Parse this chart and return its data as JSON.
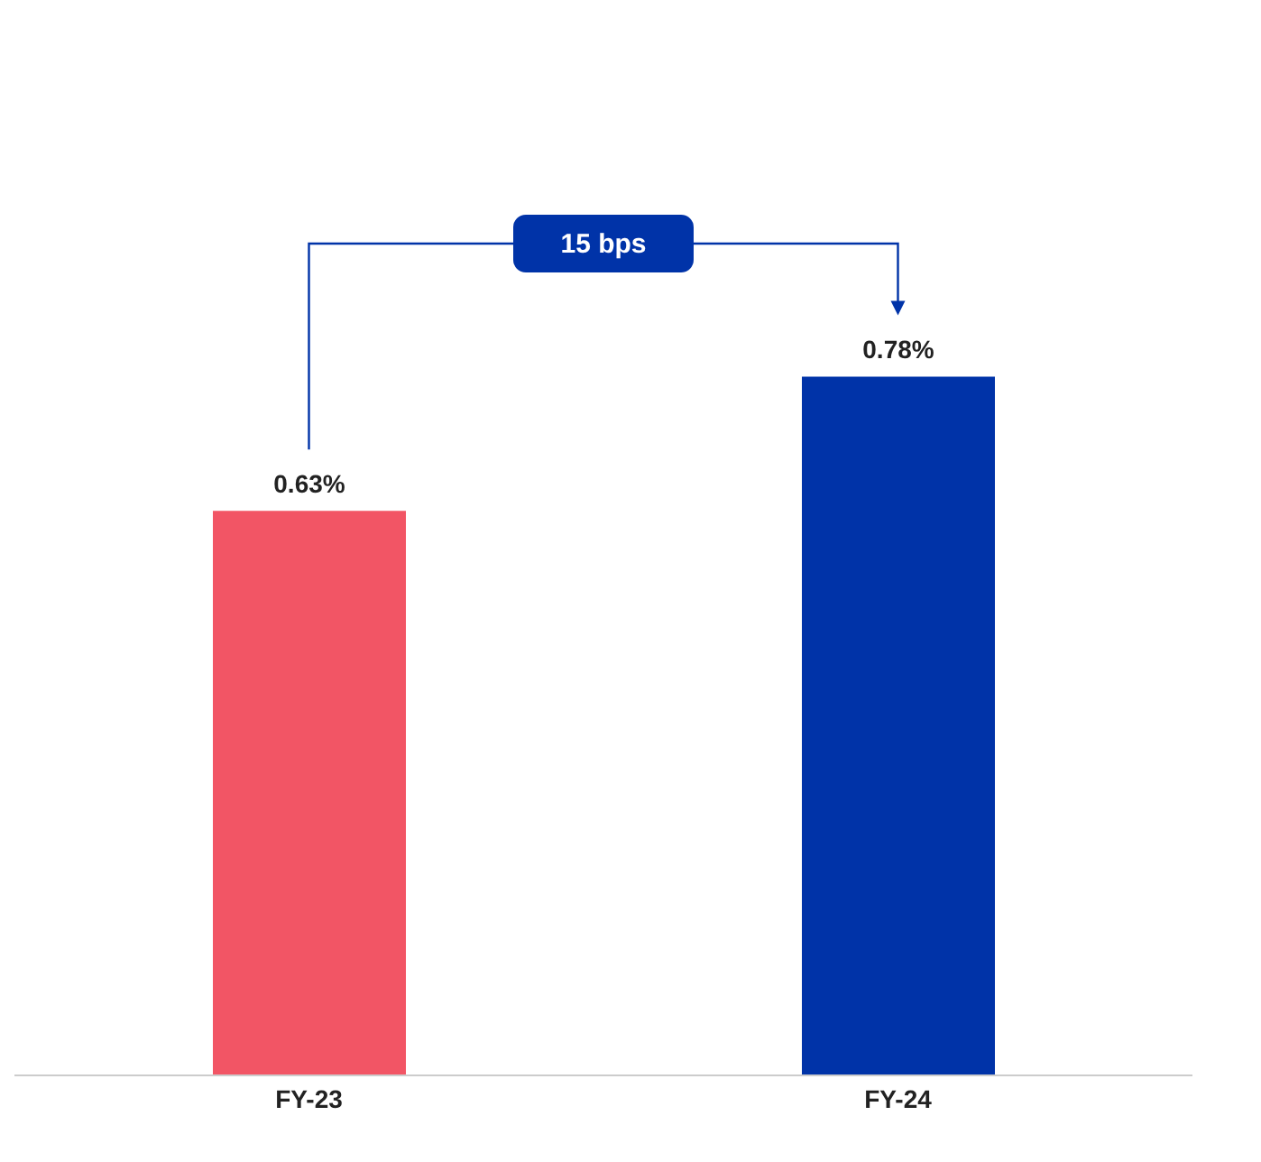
{
  "chart_data": {
    "type": "bar",
    "categories": [
      "FY-23",
      "FY-24"
    ],
    "values": [
      0.63,
      0.78
    ],
    "colors": [
      "#f25565",
      "#0033a8"
    ],
    "value_labels": [
      "0.63%",
      "0.78%"
    ],
    "annotations": [
      "15 bps"
    ]
  }
}
